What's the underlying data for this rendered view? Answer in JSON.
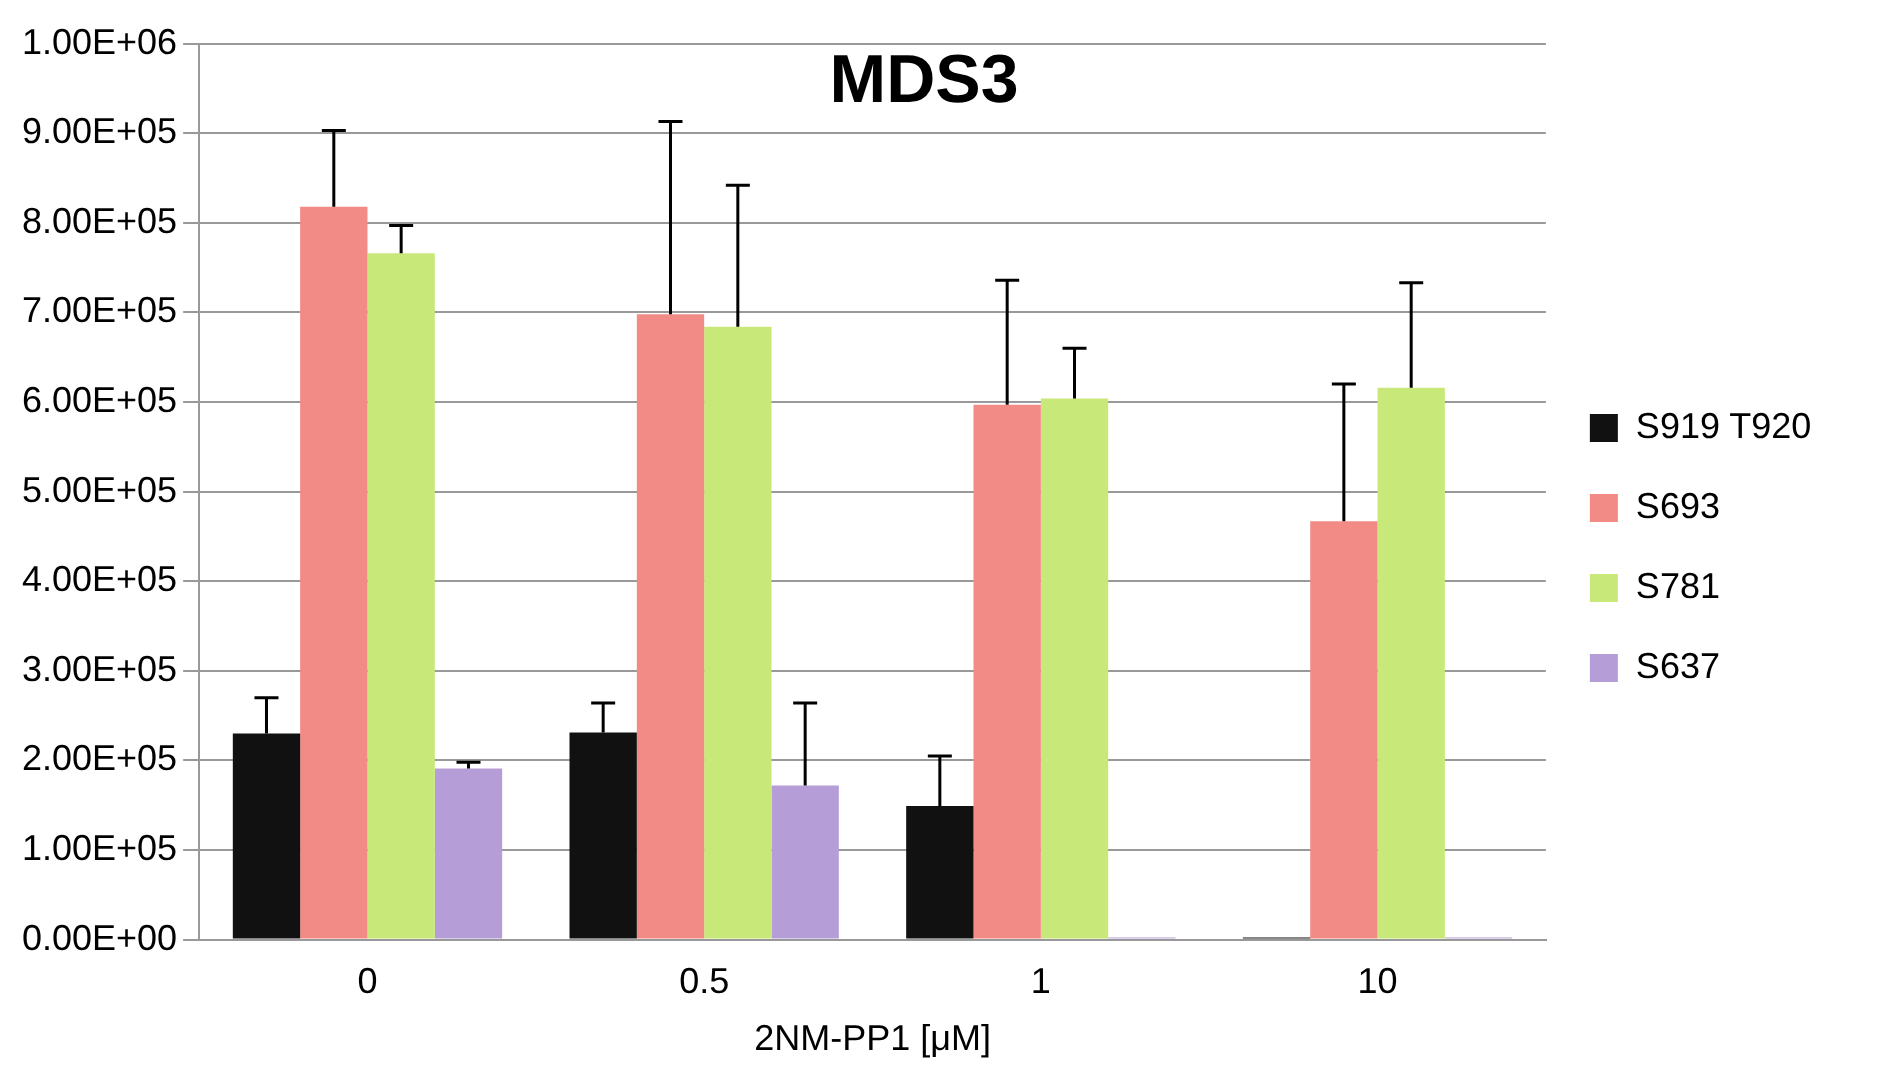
{
  "chart_data": {
    "type": "bar",
    "title": "MDS3",
    "xlabel": "2NM-PP1 [μM]",
    "categories": [
      "0",
      "0.5",
      "1",
      "10"
    ],
    "series": [
      {
        "name": "S919 T920",
        "color": "#111111",
        "values": [
          230000,
          231000,
          149000,
          0
        ],
        "errors": [
          [
            230000,
            270000
          ],
          [
            231000,
            264000
          ],
          [
            149000,
            205000
          ],
          null
        ]
      },
      {
        "name": "S693",
        "color": "#f28a86",
        "values": [
          818000,
          698000,
          597000,
          467000
        ],
        "errors": [
          [
            818000,
            903000
          ],
          [
            698000,
            913000
          ],
          [
            597000,
            736000
          ],
          [
            467000,
            620000
          ]
        ]
      },
      {
        "name": "S781",
        "color": "#c9e87a",
        "values": [
          766000,
          684000,
          604000,
          616000
        ],
        "errors": [
          [
            766000,
            797000
          ],
          [
            684000,
            842000
          ],
          [
            604000,
            660000
          ],
          [
            616000,
            733000
          ]
        ]
      },
      {
        "name": "S637",
        "color": "#b59dd8",
        "values": [
          191000,
          172000,
          0,
          0
        ],
        "errors": [
          [
            191000,
            198000
          ],
          [
            172000,
            264000
          ],
          null,
          null
        ]
      }
    ],
    "ylim": [
      0,
      1000000
    ],
    "yticks": [
      {
        "value": 0,
        "label": "0.00E+00"
      },
      {
        "value": 100000,
        "label": "1.00E+05"
      },
      {
        "value": 200000,
        "label": "2.00E+05"
      },
      {
        "value": 300000,
        "label": "3.00E+05"
      },
      {
        "value": 400000,
        "label": "4.00E+05"
      },
      {
        "value": 500000,
        "label": "5.00E+05"
      },
      {
        "value": 600000,
        "label": "6.00E+05"
      },
      {
        "value": 700000,
        "label": "7.00E+05"
      },
      {
        "value": 800000,
        "label": "8.00E+05"
      },
      {
        "value": 900000,
        "label": "9.00E+05"
      },
      {
        "value": 1000000,
        "label": "1.00E+06"
      }
    ],
    "grid": "y",
    "legend": "right"
  }
}
